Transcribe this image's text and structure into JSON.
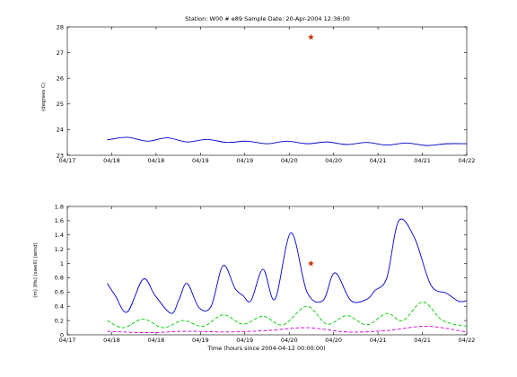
{
  "figure": {
    "title": "Station: W00 # e89  Sample Date: 20-Apr-2004 12:36:00",
    "xlabel": "Time (hours since 2004-04-12 00:00:00)"
  },
  "chart_data": [
    {
      "type": "line",
      "title": "Station: W00 # e89  Sample Date: 20-Apr-2004 12:36:00",
      "ylabel": "(degrees C)",
      "xlim": [
        0,
        5
      ],
      "ylim": [
        23,
        28
      ],
      "x_tick_labels": [
        "04/17",
        "04/18",
        "04/18",
        "04/19",
        "04/19",
        "04/20",
        "04/20",
        "04/21",
        "04/21",
        "04/22"
      ],
      "y_ticks": [
        23,
        24,
        25,
        26,
        27,
        28
      ],
      "grid": false,
      "series": [
        {
          "color": "#0000cc",
          "x": [
            0.5,
            0.75,
            1,
            1.25,
            1.5,
            1.75,
            2,
            2.25,
            2.5,
            2.75,
            3,
            3.25,
            3.5,
            3.75,
            4,
            4.25,
            4.5,
            4.75,
            5
          ],
          "y": [
            23.6,
            23.7,
            23.55,
            23.68,
            23.52,
            23.62,
            23.5,
            23.55,
            23.45,
            23.55,
            23.45,
            23.52,
            23.42,
            23.5,
            23.4,
            23.48,
            23.38,
            23.45,
            23.45
          ],
          "style": "solid"
        }
      ],
      "sample_marker": {
        "x": 3.05,
        "y": 27.6,
        "color": "#cc3300",
        "shape": "star"
      }
    },
    {
      "type": "line",
      "title": "",
      "ylabel": "(m) (Hs) (swell) (wind)",
      "xlabel": "Time (hours since 2004-04-12 00:00:00)",
      "xlim": [
        0,
        5
      ],
      "ylim": [
        0,
        1.8
      ],
      "x_tick_labels": [
        "04/17",
        "04/18",
        "04/18",
        "04/19",
        "04/19",
        "04/20",
        "04/20",
        "04/21",
        "04/21",
        "04/22"
      ],
      "y_ticks": [
        "0",
        "0.2",
        "0.4",
        "0.6",
        "0.8",
        "1",
        "1.2",
        "1.4",
        "1.6",
        "1.8"
      ],
      "grid": false,
      "series": [
        {
          "color": "#0000cc",
          "style": "solid",
          "x": [
            0.5,
            0.6,
            0.75,
            0.95,
            1.1,
            1.3,
            1.4,
            1.5,
            1.65,
            1.8,
            1.95,
            2.1,
            2.2,
            2.3,
            2.45,
            2.6,
            2.8,
            3,
            3.2,
            3.35,
            3.55,
            3.75,
            3.85,
            4.0,
            4.15,
            4.35,
            4.55,
            4.75,
            4.9,
            5.0
          ],
          "y": [
            0.72,
            0.55,
            0.32,
            0.78,
            0.55,
            0.3,
            0.5,
            0.72,
            0.38,
            0.4,
            0.97,
            0.65,
            0.55,
            0.48,
            0.92,
            0.5,
            1.43,
            0.6,
            0.48,
            0.87,
            0.48,
            0.5,
            0.62,
            0.8,
            1.6,
            1.35,
            0.7,
            0.58,
            0.47,
            0.48
          ]
        },
        {
          "color": "#00cc00",
          "style": "dashed",
          "x": [
            0.5,
            0.7,
            0.95,
            1.2,
            1.45,
            1.7,
            1.95,
            2.2,
            2.45,
            2.7,
            3.0,
            3.25,
            3.5,
            3.75,
            4.0,
            4.2,
            4.45,
            4.7,
            5.0
          ],
          "y": [
            0.2,
            0.1,
            0.22,
            0.1,
            0.2,
            0.12,
            0.28,
            0.15,
            0.26,
            0.14,
            0.4,
            0.15,
            0.27,
            0.14,
            0.3,
            0.2,
            0.46,
            0.2,
            0.12
          ]
        },
        {
          "color": "#cc00cc",
          "style": "dashed",
          "x": [
            0.5,
            1,
            1.5,
            2,
            2.5,
            3.0,
            3.5,
            4.0,
            4.5,
            5.0
          ],
          "y": [
            0.05,
            0.03,
            0.05,
            0.04,
            0.06,
            0.1,
            0.04,
            0.06,
            0.12,
            0.04
          ]
        }
      ],
      "sample_marker": {
        "x": 3.05,
        "y": 1.0,
        "color": "#cc3300",
        "shape": "star"
      }
    }
  ]
}
